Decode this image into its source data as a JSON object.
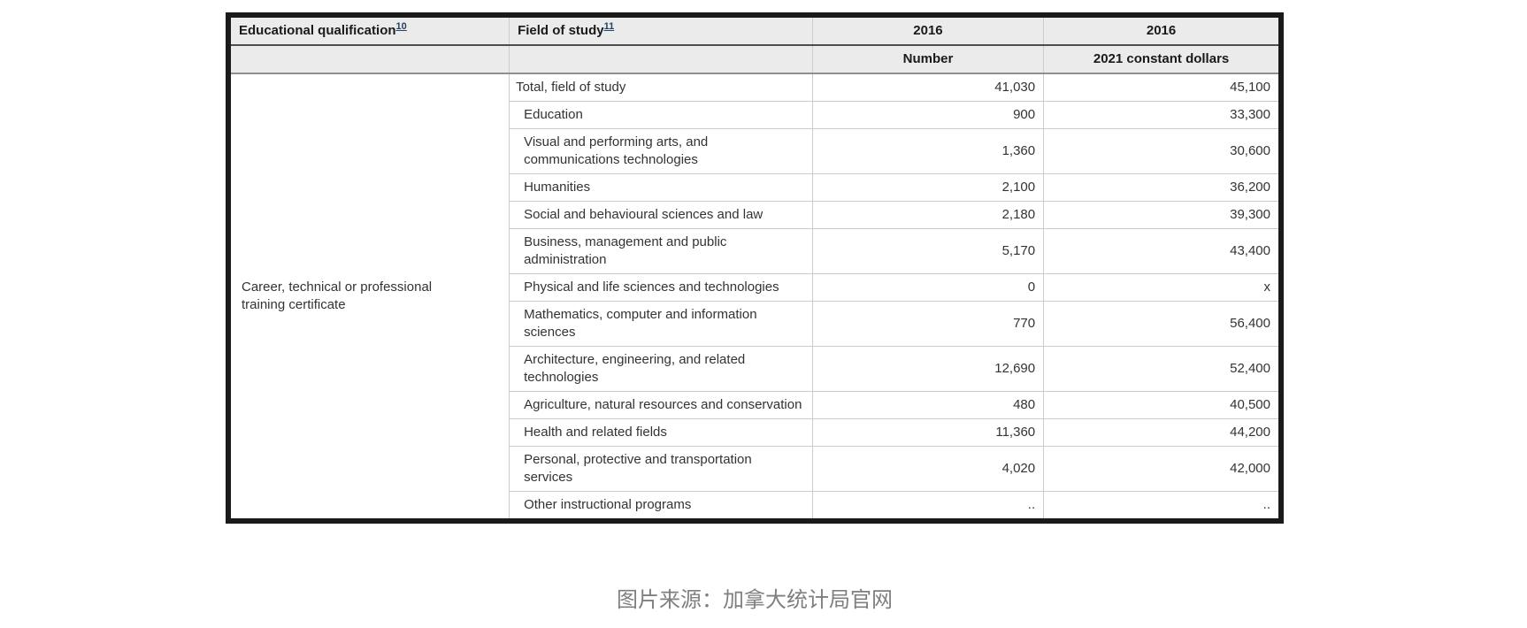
{
  "header": {
    "col1": {
      "label": "Educational qualification",
      "footnote": "10"
    },
    "col2": {
      "label": "Field of study",
      "footnote": "11"
    },
    "col3": {
      "year": "2016",
      "sub": "Number"
    },
    "col4": {
      "year": "2016",
      "sub": "2021 constant dollars"
    }
  },
  "qualification": "Career, technical or professional training certificate",
  "rows": [
    {
      "field": "Total, field of study",
      "indent": false,
      "number": "41,030",
      "dollars": "45,100"
    },
    {
      "field": "Education",
      "indent": true,
      "number": "900",
      "dollars": "33,300"
    },
    {
      "field": "Visual and performing arts, and communications technologies",
      "indent": true,
      "number": "1,360",
      "dollars": "30,600"
    },
    {
      "field": "Humanities",
      "indent": true,
      "number": "2,100",
      "dollars": "36,200"
    },
    {
      "field": "Social and behavioural sciences and law",
      "indent": true,
      "number": "2,180",
      "dollars": "39,300"
    },
    {
      "field": "Business, management and public administration",
      "indent": true,
      "number": "5,170",
      "dollars": "43,400"
    },
    {
      "field": "Physical and life sciences and technologies",
      "indent": true,
      "number": "0",
      "dollars": "x"
    },
    {
      "field": "Mathematics, computer and information sciences",
      "indent": true,
      "number": "770",
      "dollars": "56,400"
    },
    {
      "field": "Architecture, engineering, and related technologies",
      "indent": true,
      "number": "12,690",
      "dollars": "52,400"
    },
    {
      "field": "Agriculture, natural resources and conservation",
      "indent": true,
      "number": "480",
      "dollars": "40,500"
    },
    {
      "field": "Health and related fields",
      "indent": true,
      "number": "11,360",
      "dollars": "44,200"
    },
    {
      "field": "Personal, protective and transportation services",
      "indent": true,
      "number": "4,020",
      "dollars": "42,000"
    },
    {
      "field": "Other instructional programs",
      "indent": true,
      "number": "..",
      "dollars": ".."
    }
  ],
  "caption": "图片来源：加拿大统计局官网",
  "colors": {
    "outer_border": "#1a1a1a",
    "header_background": "#ebebeb",
    "grid_line": "#cccccc",
    "header_separator_dark": "#4d4d4d",
    "header_separator_mid": "#8f8f8f",
    "body_text": "#333333",
    "footnote_link": "#284162",
    "caption_text": "#7f7f7f"
  }
}
